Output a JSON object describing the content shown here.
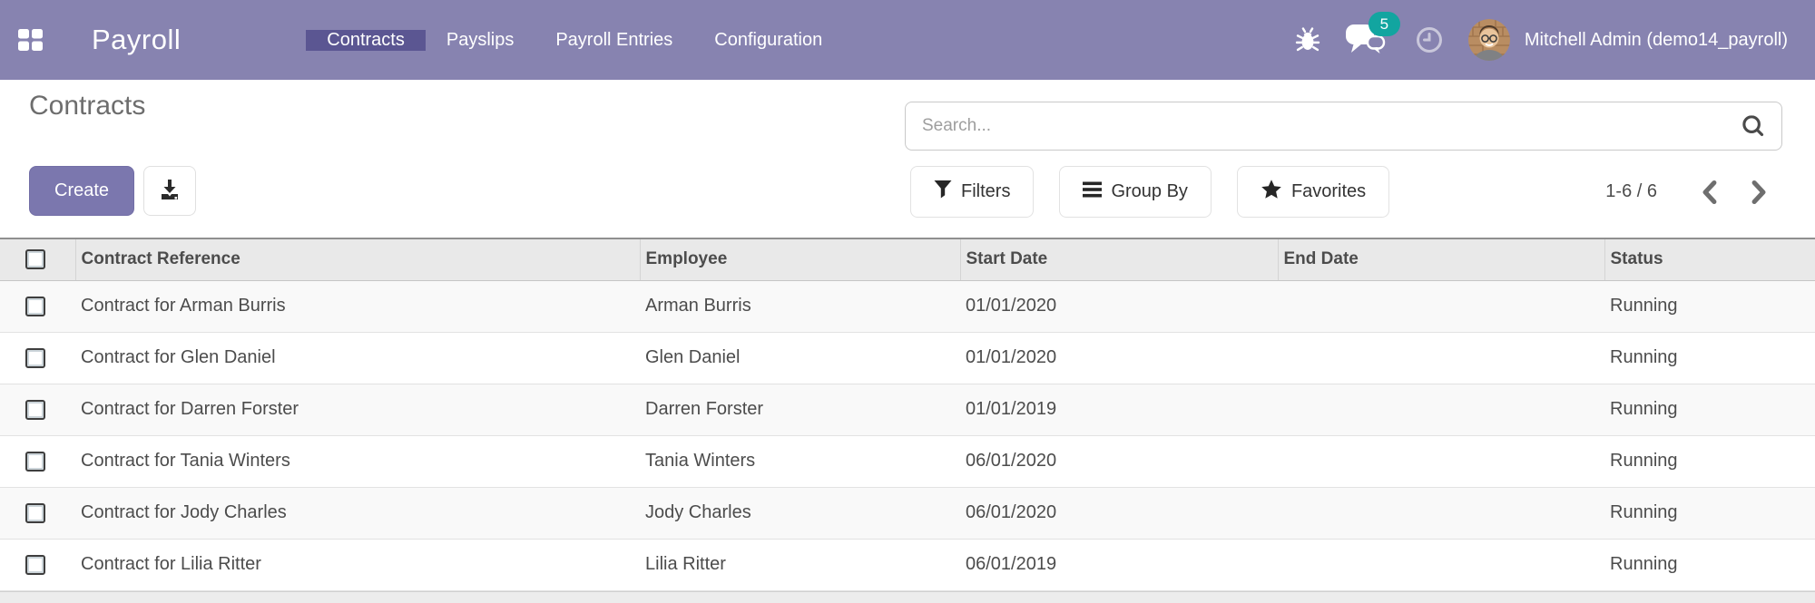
{
  "navbar": {
    "app_name": "Payroll",
    "menu": [
      {
        "label": "Contracts",
        "active": true
      },
      {
        "label": "Payslips",
        "active": false
      },
      {
        "label": "Payroll Entries",
        "active": false
      },
      {
        "label": "Configuration",
        "active": false
      }
    ],
    "message_badge_count": "5",
    "user_name": "Mitchell Admin (demo14_payroll)"
  },
  "control_panel": {
    "title": "Contracts",
    "create_button": "Create",
    "search": {
      "placeholder": "Search...",
      "value": ""
    },
    "filters_button": "Filters",
    "group_by_button": "Group By",
    "favorites_button": "Favorites",
    "pager": {
      "range": "1-6 / 6"
    }
  },
  "table": {
    "columns": [
      "Contract Reference",
      "Employee",
      "Start Date",
      "End Date",
      "Status"
    ],
    "row_keys": [
      "reference",
      "employee",
      "start_date",
      "end_date",
      "status"
    ],
    "rows": [
      {
        "reference": "Contract for Arman Burris",
        "employee": "Arman Burris",
        "start_date": "01/01/2020",
        "end_date": "",
        "status": "Running"
      },
      {
        "reference": "Contract for Glen Daniel",
        "employee": "Glen Daniel",
        "start_date": "01/01/2020",
        "end_date": "",
        "status": "Running"
      },
      {
        "reference": "Contract for Darren Forster",
        "employee": "Darren Forster",
        "start_date": "01/01/2019",
        "end_date": "",
        "status": "Running"
      },
      {
        "reference": "Contract for Tania Winters",
        "employee": "Tania Winters",
        "start_date": "06/01/2020",
        "end_date": "",
        "status": "Running"
      },
      {
        "reference": "Contract for Jody Charles",
        "employee": "Jody Charles",
        "start_date": "06/01/2020",
        "end_date": "",
        "status": "Running"
      },
      {
        "reference": "Contract for Lilia Ritter",
        "employee": "Lilia Ritter",
        "start_date": "06/01/2019",
        "end_date": "",
        "status": "Running"
      }
    ]
  },
  "colors": {
    "navbar_bg": "#8783b0",
    "navbar_active_bg": "#5b5692",
    "badge_bg": "#12a5a0",
    "create_button_bg": "#7b77ae",
    "header_row_bg": "#e9e9e9",
    "stripe_row_bg": "#f9f9f9"
  }
}
